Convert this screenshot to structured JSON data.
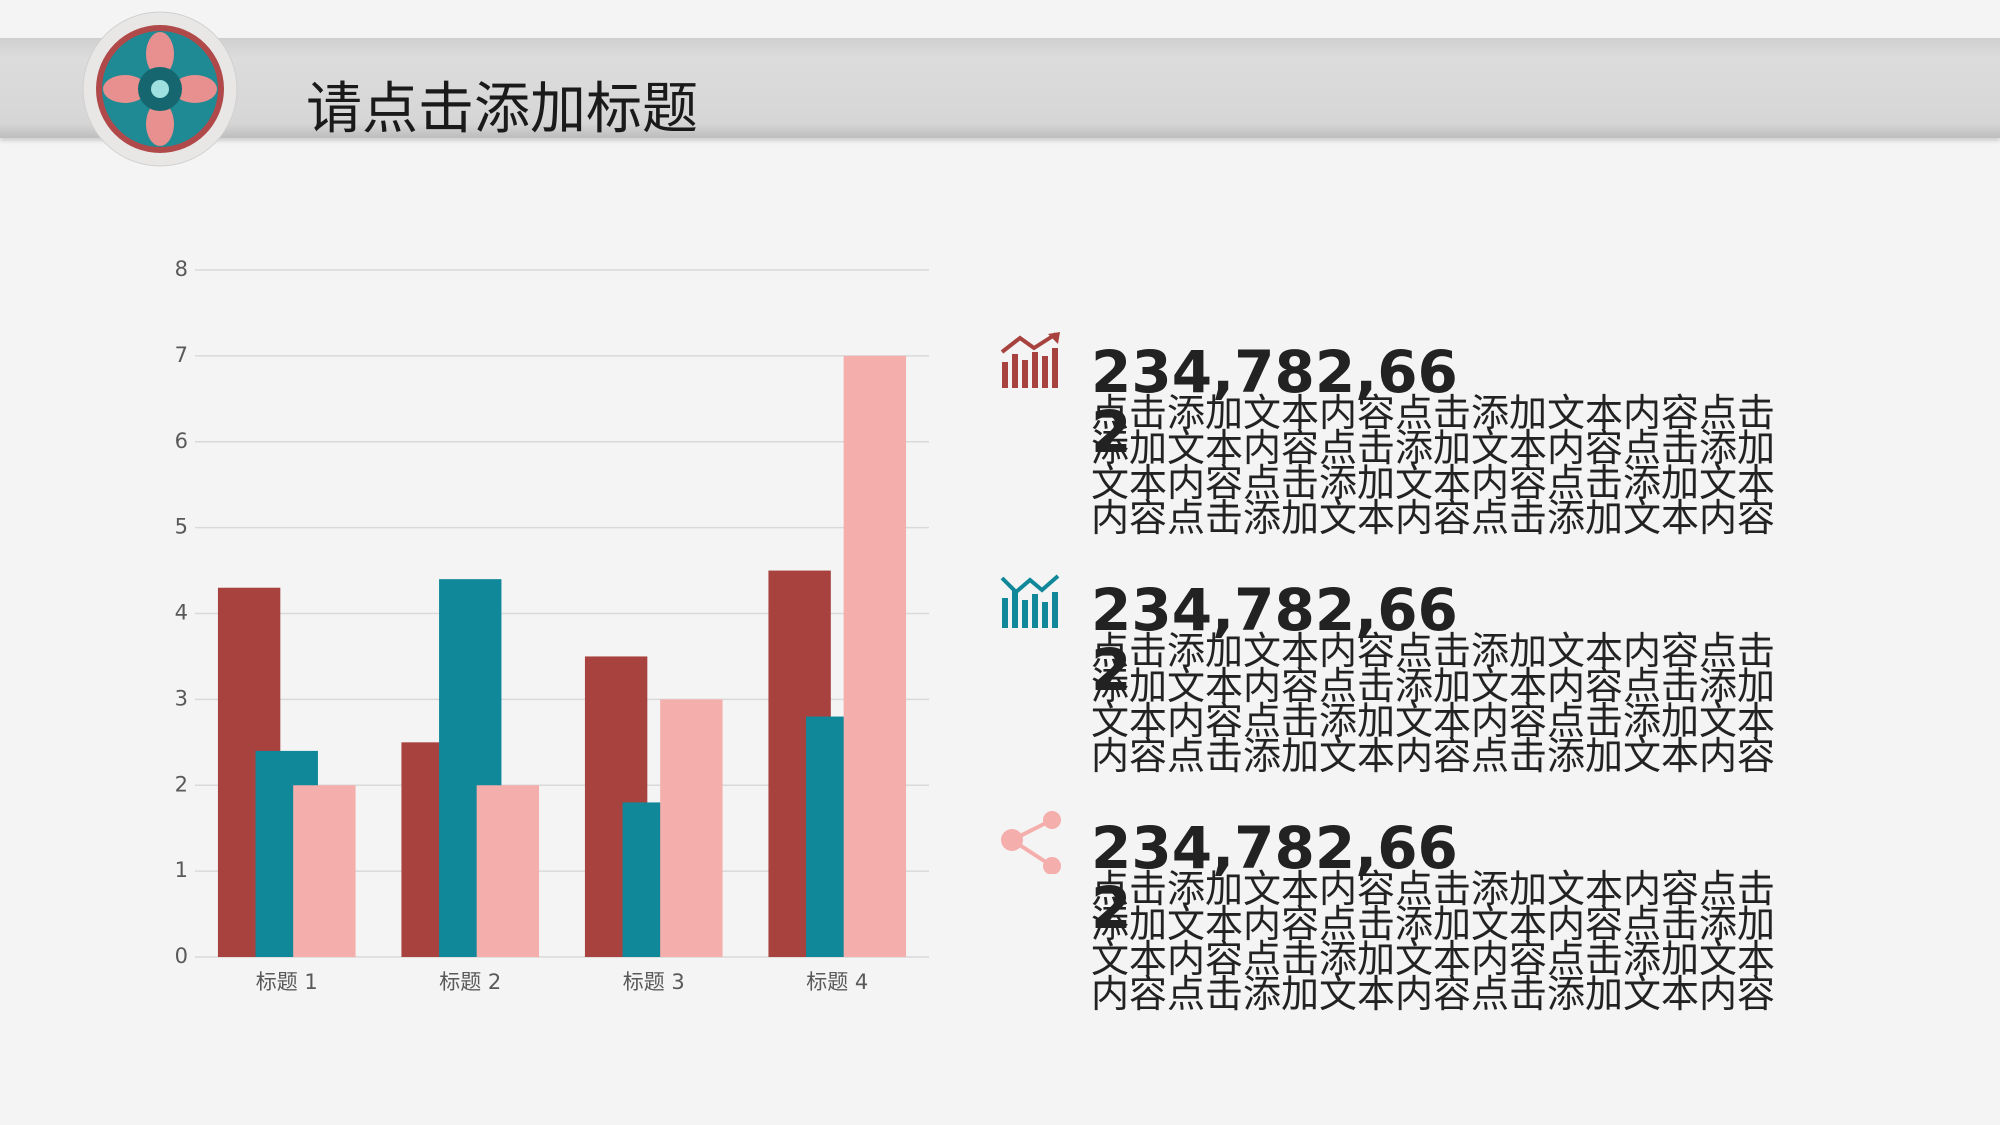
{
  "header": {
    "title": "请点击添加标题"
  },
  "chart_data": {
    "type": "bar",
    "categories": [
      "标题 1",
      "标题 2",
      "标题 3",
      "标题 4"
    ],
    "series": [
      {
        "color": "#a8423f",
        "values": [
          4.3,
          2.5,
          3.5,
          4.5
        ]
      },
      {
        "color": "#118899",
        "values": [
          2.4,
          4.4,
          1.8,
          2.8
        ]
      },
      {
        "color": "#f4aeac",
        "values": [
          2.0,
          2.0,
          3.0,
          7.0
        ]
      }
    ],
    "ylim": [
      0,
      8
    ],
    "yticks": [
      0,
      1,
      2,
      3,
      4,
      5,
      6,
      7,
      8
    ],
    "grid": true
  },
  "items": [
    {
      "number": "234,782,662",
      "text": "点击添加文本内容点击添加文本内容点击添加文本内容点击添加文本内容点击添加文本内容点击添加文本内容点击添加文本内容点击添加文本内容点击添加文本内容"
    },
    {
      "number": "234,782,662",
      "text": "点击添加文本内容点击添加文本内容点击添加文本内容点击添加文本内容点击添加文本内容点击添加文本内容点击添加文本内容点击添加文本内容点击添加文本内容"
    },
    {
      "number": "234,782,662",
      "text": "点击添加文本内容点击添加文本内容点击添加文本内容点击添加文本内容点击添加文本内容点击添加文本内容点击添加文本内容点击添加文本内容点击添加文本内容"
    }
  ]
}
